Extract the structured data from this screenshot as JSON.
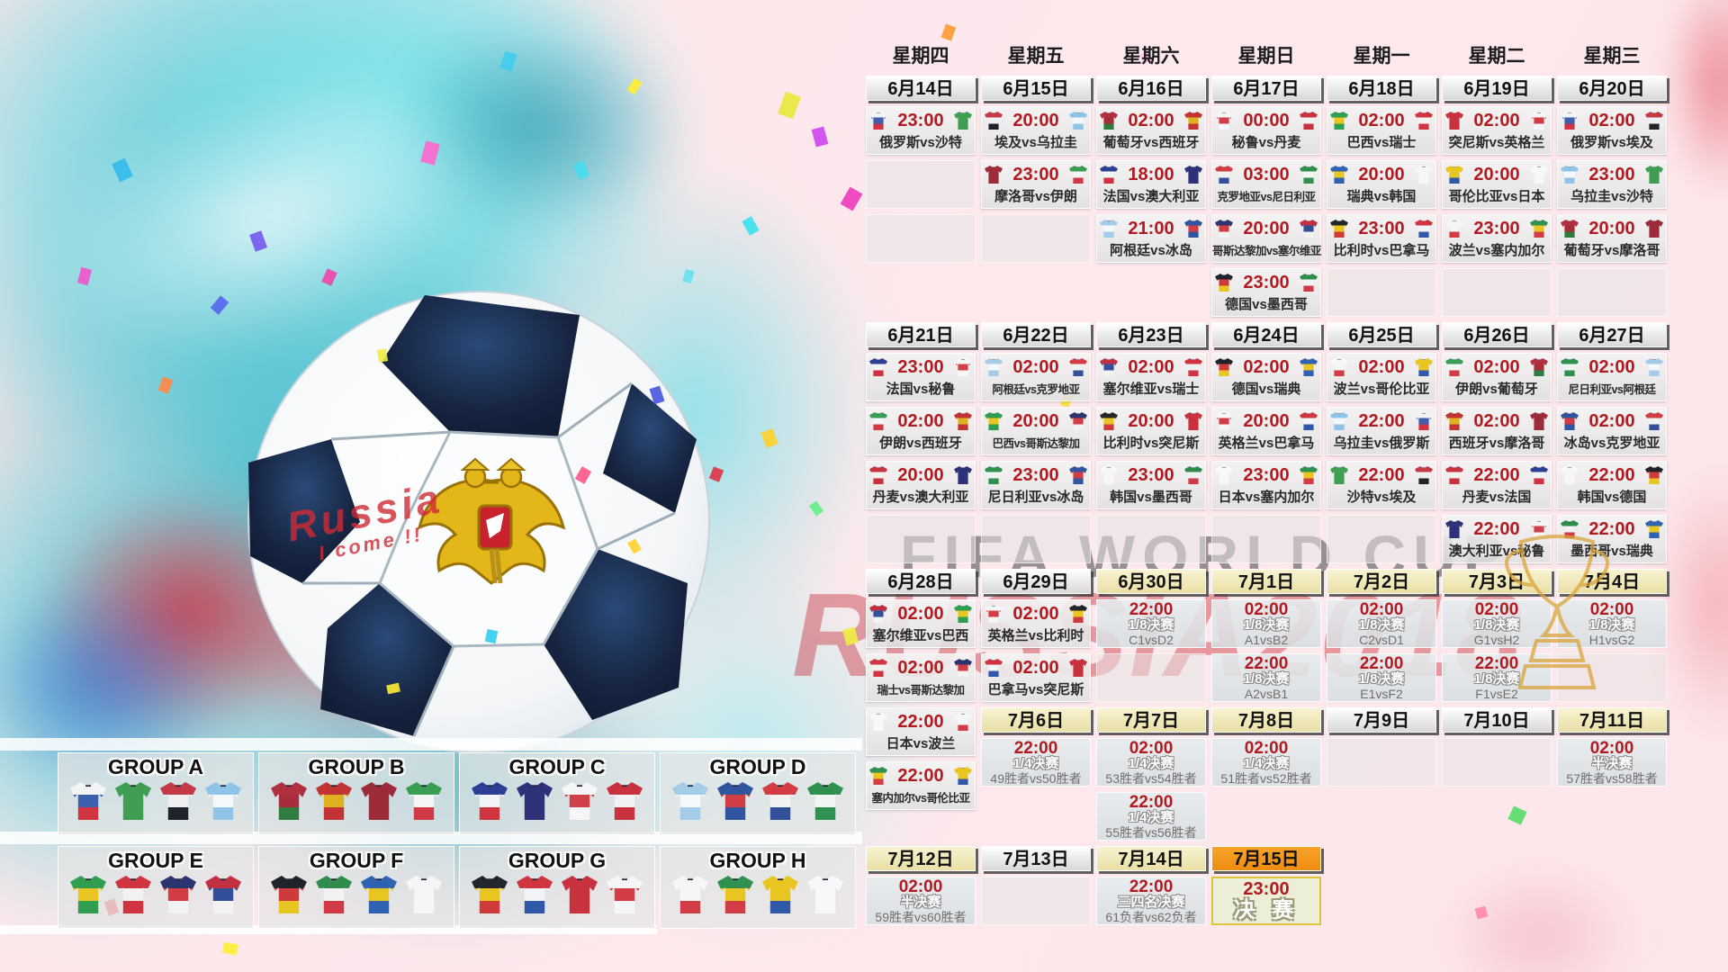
{
  "watermarks": {
    "fifa": "FIFA WORLD CUP",
    "russia": "RUSSIA2018",
    "ball_script_line1": "Russia",
    "ball_script_line2": "I come !!"
  },
  "teams": {
    "俄罗斯": [
      "#f2f4f6",
      "#3c5fae",
      "#d03440"
    ],
    "沙特": [
      "#3f9e52"
    ],
    "埃及": [
      "#c23a46",
      "#f0f0f0",
      "#20242a"
    ],
    "乌拉圭": [
      "#8fc3e8",
      "#f5f8fb",
      "#8fc3e8"
    ],
    "葡萄牙": [
      "#b03040",
      "#a82c3c",
      "#2e7c3e"
    ],
    "西班牙": [
      "#c23434",
      "#e0b11e",
      "#c23434"
    ],
    "摩洛哥": [
      "#9c2c3a"
    ],
    "伊朗": [
      "#3a9e52",
      "#f5f5f5",
      "#cf3a44"
    ],
    "法国": [
      "#2c3f94",
      "#f2f4f8",
      "#d03440"
    ],
    "澳大利亚": [
      "#2c3178"
    ],
    "秘鲁": [
      "#f5f6f8",
      "#d04048",
      "#f5f6f8"
    ],
    "丹麦": [
      "#c8323e",
      "#f2f2f2",
      "#c8323e"
    ],
    "阿根廷": [
      "#a4cbe8",
      "#f6f9fc",
      "#a4cbe8"
    ],
    "冰岛": [
      "#30549e",
      "#d23c44",
      "#30549e"
    ],
    "克罗地亚": [
      "#d23c44",
      "#f2f2f2",
      "#32509a"
    ],
    "尼日利亚": [
      "#2f9050",
      "#f2f6f2",
      "#2f9050"
    ],
    "哥斯达黎加": [
      "#2a3570",
      "#d23c44",
      "#f2f2f2"
    ],
    "塞尔维亚": [
      "#c03040",
      "#32509a",
      "#f2f2f2"
    ],
    "德国": [
      "#20242a",
      "#cf3a3a",
      "#e8c520"
    ],
    "墨西哥": [
      "#2f8c4c",
      "#f2f2f2",
      "#cf3a44"
    ],
    "巴西": [
      "#2f9e50",
      "#e8c520",
      "#2f9e50"
    ],
    "瑞士": [
      "#d03440",
      "#f2f2f2",
      "#d03440"
    ],
    "瑞典": [
      "#2f62b0",
      "#e8c520",
      "#2f62b0"
    ],
    "韩国": [
      "#f6f6f8"
    ],
    "比利时": [
      "#22262c",
      "#e8c520",
      "#cf3a3a"
    ],
    "巴拿马": [
      "#d03440",
      "#f2f4f8",
      "#3058a8"
    ],
    "突尼斯": [
      "#c8323e"
    ],
    "英格兰": [
      "#f4f6f8",
      "#d23c44",
      "#f4f6f8"
    ],
    "波兰": [
      "#f4f6f8",
      "#f4f6f8",
      "#d23c44"
    ],
    "塞内加尔": [
      "#2f9050",
      "#e8c520",
      "#d23c44"
    ],
    "哥伦比亚": [
      "#e8c520",
      "#e8c520",
      "#3058a8"
    ],
    "日本": [
      "#f6f8fa"
    ]
  },
  "columns": [
    {
      "weekday": "星期四",
      "items": [
        {
          "type": "date",
          "label": "6月14日",
          "variant": "gray"
        },
        {
          "type": "match",
          "time": "23:00",
          "home": "俄罗斯",
          "away": "沙特"
        },
        {
          "type": "empty"
        },
        {
          "type": "empty"
        },
        {
          "type": "blank"
        },
        {
          "type": "date",
          "label": "6月21日",
          "variant": "gray"
        },
        {
          "type": "match",
          "time": "23:00",
          "home": "法国",
          "away": "秘鲁"
        },
        {
          "type": "match",
          "time": "02:00",
          "home": "伊朗",
          "away": "西班牙"
        },
        {
          "type": "match",
          "time": "20:00",
          "home": "丹麦",
          "away": "澳大利亚"
        },
        {
          "type": "empty"
        },
        {
          "type": "date",
          "label": "6月28日",
          "variant": "gray"
        },
        {
          "type": "match",
          "time": "02:00",
          "home": "塞尔维亚",
          "away": "巴西"
        },
        {
          "type": "match",
          "time": "02:00",
          "home": "瑞士",
          "away": "哥斯达黎加"
        },
        {
          "type": "match",
          "time": "22:00",
          "home": "日本",
          "away": "波兰"
        },
        {
          "type": "match",
          "time": "22:00",
          "home": "塞内加尔",
          "away": "哥伦比亚"
        },
        {
          "type": "gap"
        },
        {
          "type": "date",
          "label": "7月12日",
          "variant": "yellow"
        },
        {
          "type": "ko",
          "time": "02:00",
          "stage": "半决赛",
          "matchup": "59胜者vs60胜者"
        }
      ]
    },
    {
      "weekday": "星期五",
      "items": [
        {
          "type": "date",
          "label": "6月15日",
          "variant": "gray"
        },
        {
          "type": "match",
          "time": "20:00",
          "home": "埃及",
          "away": "乌拉圭"
        },
        {
          "type": "match",
          "time": "23:00",
          "home": "摩洛哥",
          "away": "伊朗"
        },
        {
          "type": "empty"
        },
        {
          "type": "blank"
        },
        {
          "type": "date",
          "label": "6月22日",
          "variant": "gray"
        },
        {
          "type": "match",
          "time": "02:00",
          "home": "阿根廷",
          "away": "克罗地亚"
        },
        {
          "type": "match",
          "time": "20:00",
          "home": "巴西",
          "away": "哥斯达黎加"
        },
        {
          "type": "match",
          "time": "23:00",
          "home": "尼日利亚",
          "away": "冰岛"
        },
        {
          "type": "empty"
        },
        {
          "type": "date",
          "label": "6月29日",
          "variant": "gray"
        },
        {
          "type": "match",
          "time": "02:00",
          "home": "英格兰",
          "away": "比利时"
        },
        {
          "type": "match",
          "time": "02:00",
          "home": "巴拿马",
          "away": "突尼斯"
        },
        {
          "type": "date",
          "label": "7月6日",
          "variant": "yellow"
        },
        {
          "type": "ko",
          "time": "22:00",
          "stage": "1/4决赛",
          "matchup": "49胜者vs50胜者"
        },
        {
          "type": "blank"
        },
        {
          "type": "date",
          "label": "7月13日",
          "variant": "gray"
        },
        {
          "type": "empty"
        }
      ]
    },
    {
      "weekday": "星期六",
      "items": [
        {
          "type": "date",
          "label": "6月16日",
          "variant": "gray"
        },
        {
          "type": "match",
          "time": "02:00",
          "home": "葡萄牙",
          "away": "西班牙"
        },
        {
          "type": "match",
          "time": "18:00",
          "home": "法国",
          "away": "澳大利亚"
        },
        {
          "type": "match",
          "time": "21:00",
          "home": "阿根廷",
          "away": "冰岛"
        },
        {
          "type": "blank"
        },
        {
          "type": "date",
          "label": "6月23日",
          "variant": "gray"
        },
        {
          "type": "match",
          "time": "02:00",
          "home": "塞尔维亚",
          "away": "瑞士"
        },
        {
          "type": "match",
          "time": "20:00",
          "home": "比利时",
          "away": "突尼斯"
        },
        {
          "type": "match",
          "time": "23:00",
          "home": "韩国",
          "away": "墨西哥"
        },
        {
          "type": "empty"
        },
        {
          "type": "date",
          "label": "6月30日",
          "variant": "yellow"
        },
        {
          "type": "ko",
          "time": "22:00",
          "stage": "1/8决赛",
          "matchup": "C1vsD2"
        },
        {
          "type": "empty"
        },
        {
          "type": "date",
          "label": "7月7日",
          "variant": "yellow"
        },
        {
          "type": "ko",
          "time": "02:00",
          "stage": "1/4决赛",
          "matchup": "53胜者vs54胜者"
        },
        {
          "type": "ko",
          "time": "22:00",
          "stage": "1/4决赛",
          "matchup": "55胜者vs56胜者"
        },
        {
          "type": "date",
          "label": "7月14日",
          "variant": "yellow"
        },
        {
          "type": "ko",
          "time": "22:00",
          "stage": "三四名决赛",
          "matchup": "61负者vs62负者"
        }
      ]
    },
    {
      "weekday": "星期日",
      "items": [
        {
          "type": "date",
          "label": "6月17日",
          "variant": "gray"
        },
        {
          "type": "match",
          "time": "00:00",
          "home": "秘鲁",
          "away": "丹麦"
        },
        {
          "type": "match",
          "time": "03:00",
          "home": "克罗地亚",
          "away": "尼日利亚"
        },
        {
          "type": "match",
          "time": "20:00",
          "home": "哥斯达黎加",
          "away": "塞尔维亚"
        },
        {
          "type": "match",
          "time": "23:00",
          "home": "德国",
          "away": "墨西哥"
        },
        {
          "type": "date",
          "label": "6月24日",
          "variant": "gray"
        },
        {
          "type": "match",
          "time": "02:00",
          "home": "德国",
          "away": "瑞典"
        },
        {
          "type": "match",
          "time": "20:00",
          "home": "英格兰",
          "away": "巴拿马"
        },
        {
          "type": "match",
          "time": "23:00",
          "home": "日本",
          "away": "塞内加尔"
        },
        {
          "type": "empty"
        },
        {
          "type": "date",
          "label": "7月1日",
          "variant": "yellow"
        },
        {
          "type": "ko",
          "time": "02:00",
          "stage": "1/8决赛",
          "matchup": "A1vsB2"
        },
        {
          "type": "ko",
          "time": "22:00",
          "stage": "1/8决赛",
          "matchup": "A2vsB1"
        },
        {
          "type": "date",
          "label": "7月8日",
          "variant": "yellow"
        },
        {
          "type": "ko",
          "time": "02:00",
          "stage": "1/4决赛",
          "matchup": "51胜者vs52胜者"
        },
        {
          "type": "blank"
        },
        {
          "type": "date",
          "label": "7月15日",
          "variant": "orange"
        },
        {
          "type": "final",
          "time": "23:00",
          "label": "决 赛"
        }
      ]
    },
    {
      "weekday": "星期一",
      "items": [
        {
          "type": "date",
          "label": "6月18日",
          "variant": "gray"
        },
        {
          "type": "match",
          "time": "02:00",
          "home": "巴西",
          "away": "瑞士"
        },
        {
          "type": "match",
          "time": "20:00",
          "home": "瑞典",
          "away": "韩国"
        },
        {
          "type": "match",
          "time": "23:00",
          "home": "比利时",
          "away": "巴拿马"
        },
        {
          "type": "empty"
        },
        {
          "type": "date",
          "label": "6月25日",
          "variant": "gray"
        },
        {
          "type": "match",
          "time": "02:00",
          "home": "波兰",
          "away": "哥伦比亚"
        },
        {
          "type": "match",
          "time": "22:00",
          "home": "乌拉圭",
          "away": "俄罗斯"
        },
        {
          "type": "match",
          "time": "22:00",
          "home": "沙特",
          "away": "埃及"
        },
        {
          "type": "empty"
        },
        {
          "type": "date",
          "label": "7月2日",
          "variant": "yellow"
        },
        {
          "type": "ko",
          "time": "02:00",
          "stage": "1/8决赛",
          "matchup": "C2vsD1"
        },
        {
          "type": "ko",
          "time": "22:00",
          "stage": "1/8决赛",
          "matchup": "E1vsF2"
        },
        {
          "type": "date",
          "label": "7月9日",
          "variant": "gray"
        },
        {
          "type": "empty"
        }
      ]
    },
    {
      "weekday": "星期二",
      "items": [
        {
          "type": "date",
          "label": "6月19日",
          "variant": "gray"
        },
        {
          "type": "match",
          "time": "02:00",
          "home": "突尼斯",
          "away": "英格兰"
        },
        {
          "type": "match",
          "time": "20:00",
          "home": "哥伦比亚",
          "away": "日本"
        },
        {
          "type": "match",
          "time": "23:00",
          "home": "波兰",
          "away": "塞内加尔"
        },
        {
          "type": "empty"
        },
        {
          "type": "date",
          "label": "6月26日",
          "variant": "gray"
        },
        {
          "type": "match",
          "time": "02:00",
          "home": "伊朗",
          "away": "葡萄牙"
        },
        {
          "type": "match",
          "time": "02:00",
          "home": "西班牙",
          "away": "摩洛哥"
        },
        {
          "type": "match",
          "time": "22:00",
          "home": "丹麦",
          "away": "法国"
        },
        {
          "type": "match",
          "time": "22:00",
          "home": "澳大利亚",
          "away": "秘鲁"
        },
        {
          "type": "date",
          "label": "7月3日",
          "variant": "yellow"
        },
        {
          "type": "ko",
          "time": "02:00",
          "stage": "1/8决赛",
          "matchup": "G1vsH2"
        },
        {
          "type": "ko",
          "time": "22:00",
          "stage": "1/8决赛",
          "matchup": "F1vsE2"
        },
        {
          "type": "date",
          "label": "7月10日",
          "variant": "gray"
        },
        {
          "type": "empty"
        }
      ]
    },
    {
      "weekday": "星期三",
      "items": [
        {
          "type": "date",
          "label": "6月20日",
          "variant": "gray"
        },
        {
          "type": "match",
          "time": "02:00",
          "home": "俄罗斯",
          "away": "埃及"
        },
        {
          "type": "match",
          "time": "23:00",
          "home": "乌拉圭",
          "away": "沙特"
        },
        {
          "type": "match",
          "time": "20:00",
          "home": "葡萄牙",
          "away": "摩洛哥"
        },
        {
          "type": "empty"
        },
        {
          "type": "date",
          "label": "6月27日",
          "variant": "gray"
        },
        {
          "type": "match",
          "time": "02:00",
          "home": "尼日利亚",
          "away": "阿根廷"
        },
        {
          "type": "match",
          "time": "02:00",
          "home": "冰岛",
          "away": "克罗地亚"
        },
        {
          "type": "match",
          "time": "22:00",
          "home": "韩国",
          "away": "德国"
        },
        {
          "type": "match",
          "time": "22:00",
          "home": "墨西哥",
          "away": "瑞典"
        },
        {
          "type": "date",
          "label": "7月4日",
          "variant": "yellow"
        },
        {
          "type": "ko",
          "time": "02:00",
          "stage": "1/8决赛",
          "matchup": "H1vsG2"
        },
        {
          "type": "empty"
        },
        {
          "type": "date",
          "label": "7月11日",
          "variant": "yellow"
        },
        {
          "type": "ko",
          "time": "02:00",
          "stage": "半决赛",
          "matchup": "57胜者vs58胜者"
        }
      ]
    }
  ],
  "groups": [
    {
      "label": "GROUP A",
      "teams": [
        "俄罗斯",
        "沙特",
        "埃及",
        "乌拉圭"
      ]
    },
    {
      "label": "GROUP B",
      "teams": [
        "葡萄牙",
        "西班牙",
        "摩洛哥",
        "伊朗"
      ]
    },
    {
      "label": "GROUP C",
      "teams": [
        "法国",
        "澳大利亚",
        "秘鲁",
        "丹麦"
      ]
    },
    {
      "label": "GROUP D",
      "teams": [
        "阿根廷",
        "冰岛",
        "克罗地亚",
        "尼日利亚"
      ]
    },
    {
      "label": "GROUP E",
      "teams": [
        "巴西",
        "瑞士",
        "哥斯达黎加",
        "塞尔维亚"
      ]
    },
    {
      "label": "GROUP F",
      "teams": [
        "德国",
        "墨西哥",
        "瑞典",
        "韩国"
      ]
    },
    {
      "label": "GROUP G",
      "teams": [
        "比利时",
        "巴拿马",
        "突尼斯",
        "英格兰"
      ]
    },
    {
      "label": "GROUP H",
      "teams": [
        "波兰",
        "塞内加尔",
        "哥伦比亚",
        "日本"
      ]
    }
  ]
}
